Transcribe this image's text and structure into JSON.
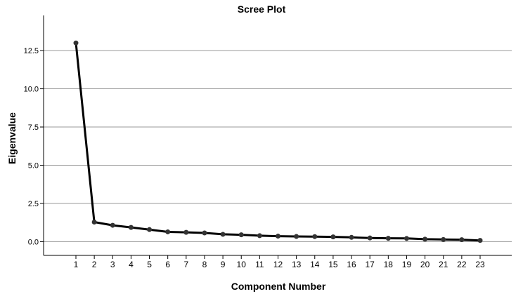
{
  "chart_data": {
    "type": "line",
    "title": "Scree Plot",
    "xlabel": "Component Number",
    "ylabel": "Eigenvalue",
    "categories": [
      "1",
      "2",
      "3",
      "4",
      "5",
      "6",
      "7",
      "8",
      "9",
      "10",
      "11",
      "12",
      "13",
      "14",
      "15",
      "16",
      "17",
      "18",
      "19",
      "20",
      "21",
      "22",
      "23"
    ],
    "values": [
      13.0,
      1.28,
      1.07,
      0.93,
      0.79,
      0.64,
      0.61,
      0.57,
      0.48,
      0.45,
      0.39,
      0.36,
      0.34,
      0.33,
      0.31,
      0.28,
      0.24,
      0.22,
      0.21,
      0.16,
      0.14,
      0.13,
      0.08
    ],
    "yticks": [
      "0.0",
      "2.5",
      "5.0",
      "7.5",
      "10.0",
      "12.5"
    ],
    "ylim": [
      -0.9,
      14.8
    ],
    "grid": true,
    "line_color": "#000000",
    "marker_color": "#333333",
    "grid_color": "#999999"
  }
}
